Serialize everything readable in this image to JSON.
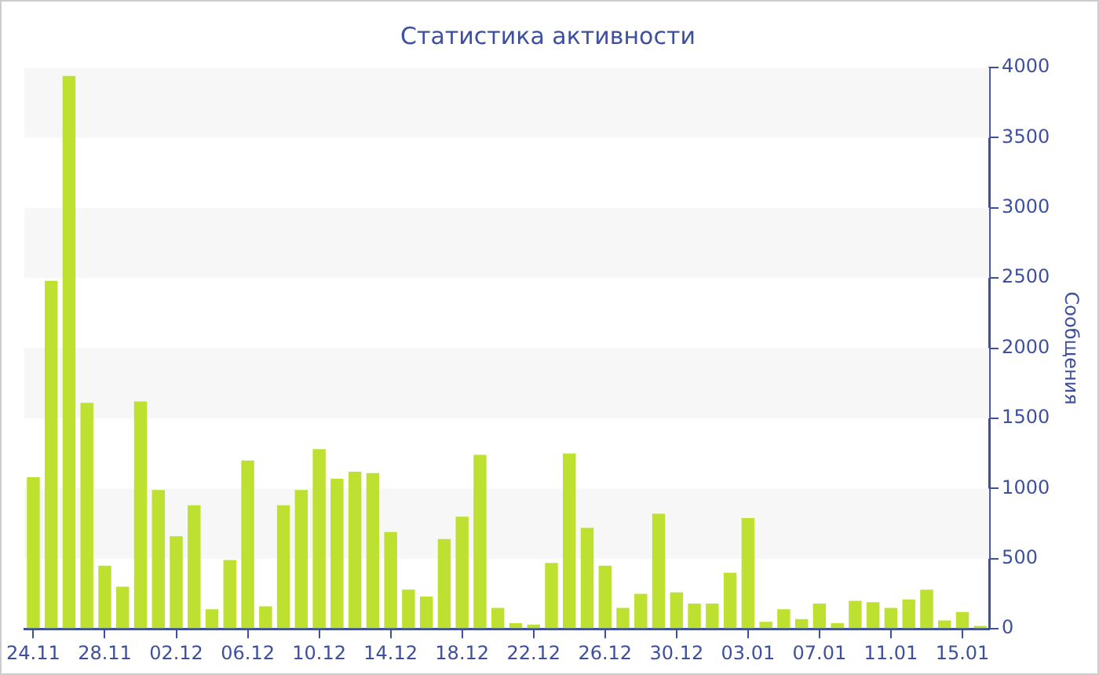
{
  "chart_data": {
    "type": "bar",
    "title": "Статистика активности",
    "ylabel": "Сообщения",
    "categories": [
      "24.11",
      null,
      null,
      null,
      "28.11",
      null,
      null,
      null,
      "02.12",
      null,
      null,
      null,
      "06.12",
      null,
      null,
      null,
      "10.12",
      null,
      null,
      null,
      "14.12",
      null,
      null,
      null,
      "18.12",
      null,
      null,
      null,
      "22.12",
      null,
      null,
      null,
      "26.12",
      null,
      null,
      null,
      "30.12",
      null,
      null,
      null,
      "03.01",
      null,
      null,
      null,
      "07.01",
      null,
      null,
      null,
      "11.01",
      null,
      null,
      null,
      "15.01",
      null
    ],
    "values": [
      1080,
      2480,
      3940,
      1610,
      450,
      300,
      1620,
      990,
      660,
      880,
      140,
      490,
      1200,
      160,
      880,
      990,
      1280,
      1070,
      1120,
      1110,
      690,
      280,
      230,
      640,
      800,
      1240,
      150,
      40,
      30,
      470,
      1250,
      720,
      450,
      150,
      250,
      820,
      260,
      180,
      180,
      400,
      790,
      50,
      140,
      70,
      180,
      40,
      200,
      190,
      150,
      210,
      280,
      60,
      120,
      20
    ],
    "color": "#bde031",
    "ylim": [
      0,
      4000
    ],
    "yticks": [
      0,
      500,
      1000,
      1500,
      2000,
      2500,
      3000,
      3500,
      4000
    ],
    "bands": [
      {
        "axis": "y",
        "from": 500,
        "to": 1000,
        "color": "#f7f7f7"
      },
      {
        "axis": "y",
        "from": 1500,
        "to": 2000,
        "color": "#f7f7f7"
      },
      {
        "axis": "y",
        "from": 2500,
        "to": 3000,
        "color": "#f7f7f7"
      },
      {
        "axis": "y",
        "from": 3500,
        "to": 4000,
        "color": "#f7f7f7"
      }
    ],
    "legend": false
  }
}
